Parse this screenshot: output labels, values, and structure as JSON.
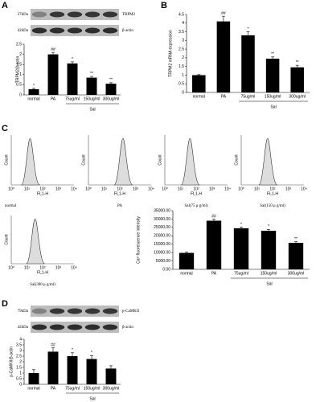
{
  "panel_letters": [
    "A",
    "B",
    "C",
    "D"
  ],
  "blots": {
    "A": [
      {
        "kda": "37kDa",
        "protein": "TRPM2"
      },
      {
        "kda": "42kDa",
        "protein": "β-actin"
      }
    ],
    "D": [
      {
        "kda": "79kDa",
        "protein": "p-CaMKII"
      },
      {
        "kda": "42kDa",
        "protein": "β-actin"
      }
    ]
  },
  "flow": {
    "y_label": "Count",
    "x_label": "FL1-H",
    "xtick_labels": [
      "10⁰",
      "10¹",
      "10²",
      "10³",
      "10⁴"
    ],
    "samples": [
      "normal",
      "PA",
      "Sal(75 μ g/ml)",
      "Sal(150 μ g/ml)",
      "Sal(300 μ g/ml)"
    ]
  },
  "chart_data": [
    {
      "type": "bar",
      "y_label": "TRPM2/β-actin",
      "color": "#000000",
      "categories": [
        "normal",
        "PA",
        "75ug/ml",
        "150ug/ml",
        "300ug/ml"
      ],
      "group_label": "Sal",
      "values": [
        0.28,
        2.0,
        1.55,
        0.85,
        0.55
      ],
      "errors": [
        0.04,
        0.1,
        0.08,
        0.06,
        0.05
      ],
      "sig_labels": [
        "*",
        "##",
        "*",
        "**",
        "**"
      ],
      "ylim": [
        0,
        2.5
      ],
      "yticks": [
        0,
        0.5,
        1,
        1.5,
        2,
        2.5
      ]
    },
    {
      "type": "bar",
      "y_label": "TRPM2 mRNA expression",
      "color": "#000000",
      "categories": [
        "normal",
        "PA",
        "75ug/ml",
        "150ug/ml",
        "300ug/ml"
      ],
      "group_label": "Sal",
      "values": [
        1.0,
        4.1,
        3.3,
        1.95,
        1.45
      ],
      "errors": [
        0.03,
        0.3,
        0.2,
        0.1,
        0.12
      ],
      "sig_labels": [
        null,
        "##",
        "*",
        "**",
        "**"
      ],
      "ylim": [
        0,
        4.5
      ],
      "yticks": [
        0,
        0.5,
        1,
        1.5,
        2,
        2.5,
        3,
        3.5,
        4,
        4.5
      ]
    },
    {
      "type": "bar",
      "y_label": "Ca²⁺fluorescence intensity",
      "color": "#000000",
      "categories": [
        "normal",
        "PA",
        "75ug/ml",
        "150ug/ml",
        "300ug/ml"
      ],
      "group_label": "Sal",
      "values": [
        9800,
        29000,
        24500,
        23000,
        15800
      ],
      "errors": [
        500,
        1000,
        700,
        800,
        700
      ],
      "sig_labels": [
        null,
        "##",
        "*",
        "*",
        "**"
      ],
      "ylim": [
        0,
        35000
      ],
      "yticks": [
        {
          "value": 0,
          "label": "0.00"
        },
        {
          "value": 5000,
          "label": "5000.00"
        },
        {
          "value": 10000,
          "label": "10000.00"
        },
        {
          "value": 15000,
          "label": "15000.00"
        },
        {
          "value": 20000,
          "label": "20000.00"
        },
        {
          "value": 25000,
          "label": "25000.00"
        },
        {
          "value": 30000,
          "label": "30000.00"
        },
        {
          "value": 35000,
          "label": "35000.00"
        }
      ]
    },
    {
      "type": "bar",
      "y_label": "p-CaMKII/β-actin",
      "color": "#000000",
      "categories": [
        "normal",
        "PA",
        "75ug/ml",
        "150ug/ml",
        "300ug/ml"
      ],
      "group_label": "Sal",
      "values": [
        1.0,
        2.9,
        2.5,
        2.25,
        1.4
      ],
      "errors": [
        0.3,
        0.35,
        0.3,
        0.3,
        0.25
      ],
      "sig_labels": [
        null,
        "##",
        "*",
        "*",
        null
      ],
      "ylim": [
        0,
        4
      ],
      "yticks": [
        0,
        0.5,
        1,
        1.5,
        2,
        2.5,
        3,
        3.5,
        4
      ]
    }
  ]
}
